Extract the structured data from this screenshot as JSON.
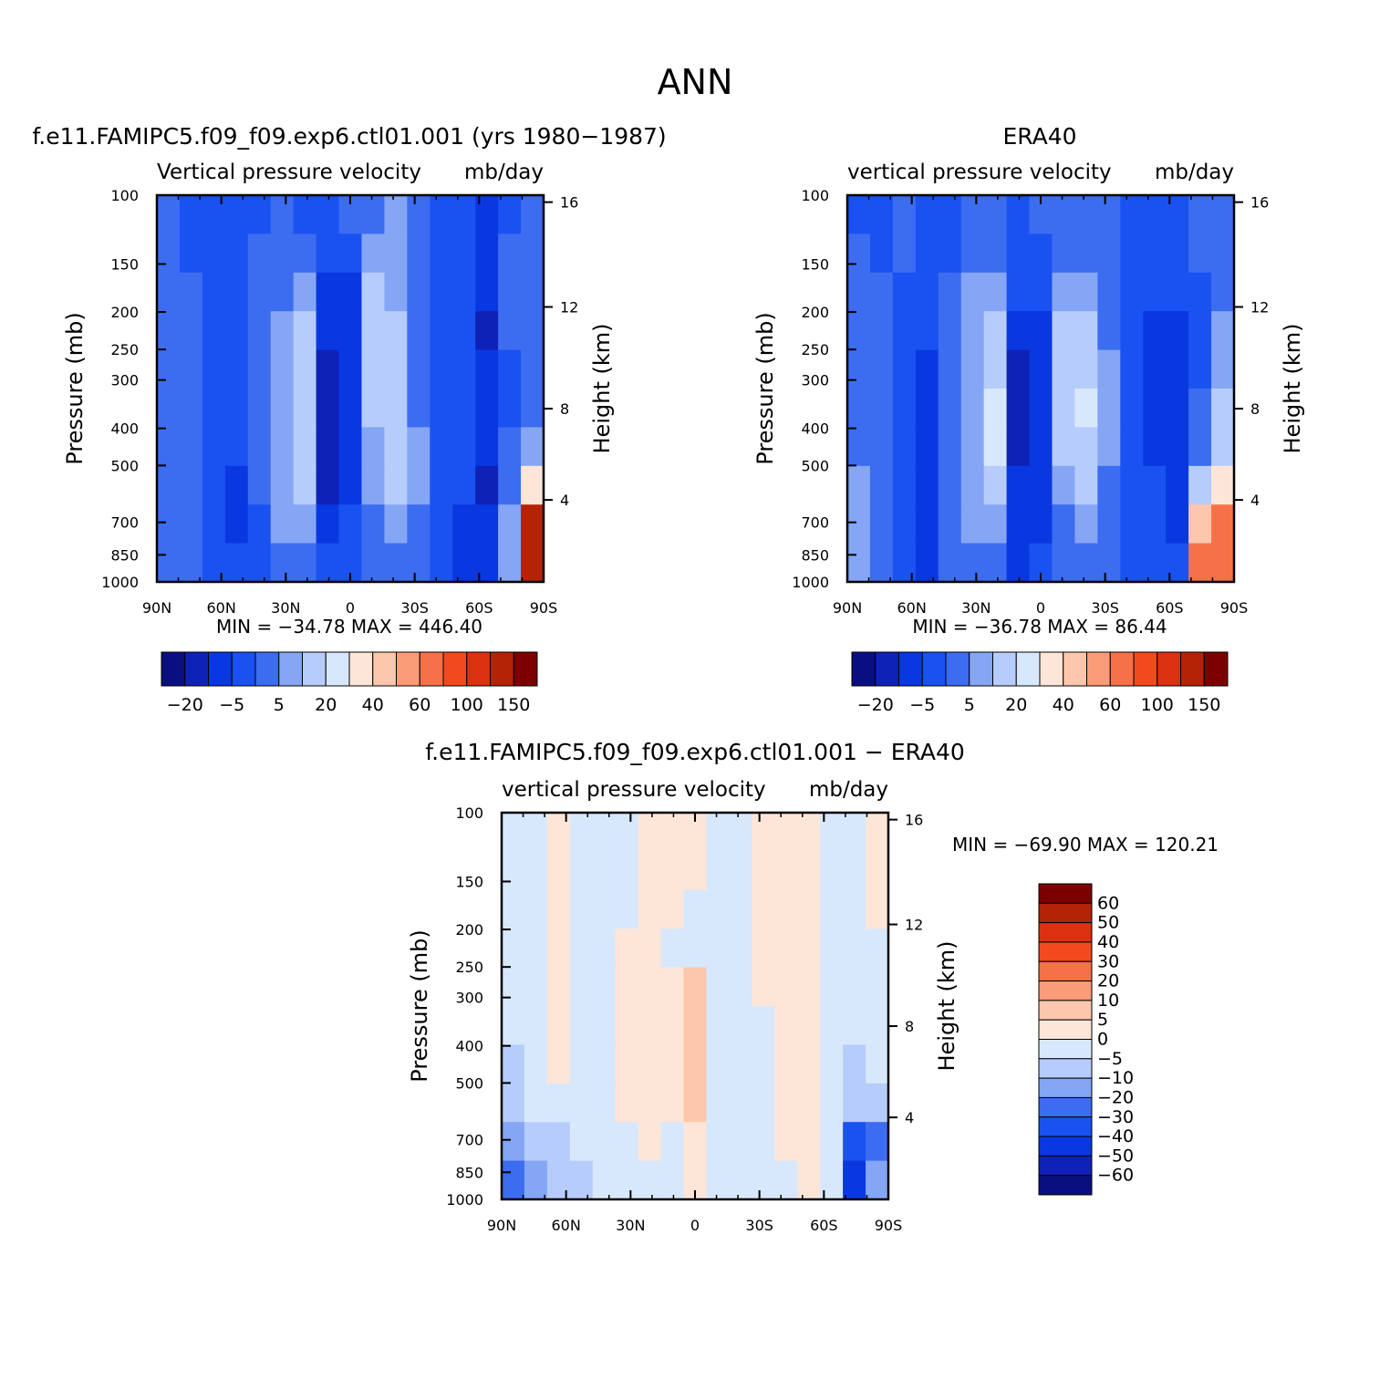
{
  "page_title": "ANN",
  "chart_data": [
    {
      "type": "heatmap",
      "title": "f.e11.FAMIPC5.f09_f09.exp6.ctl01.001 (yrs 1980-1987)",
      "field_label": "Vertical pressure velocity",
      "units": "mb/day",
      "xlabel": "",
      "ylabel": "Pressure (mb)",
      "y2label": "Height (km)",
      "x_ticks": [
        "90N",
        "60N",
        "30N",
        "0",
        "30S",
        "60S",
        "90S"
      ],
      "y_ticks": [
        100,
        150,
        200,
        250,
        300,
        400,
        500,
        700,
        850,
        1000
      ],
      "y2_ticks": [
        16,
        12,
        8,
        4
      ],
      "ylim": [
        1000,
        100
      ],
      "min_label": "MIN = -34.78",
      "max_label": "MAX = 446.40",
      "colorbar_orientation": "horizontal",
      "colorbar_labels": [
        "-20",
        "-5",
        "5",
        "20",
        "40",
        "60",
        "100",
        "150"
      ],
      "colors": [
        "#0a0f80",
        "#0f22b8",
        "#0a38e0",
        "#1a52f2",
        "#3c6cf0",
        "#84a6f5",
        "#b6ccfa",
        "#d8e8fc",
        "#fde6d8",
        "#fcc7ad",
        "#fb9c78",
        "#f77148",
        "#f24a1e",
        "#dc3110",
        "#b52306",
        "#7d0000"
      ],
      "field": [
        [
          0.26,
          0.23,
          0.22,
          0.21,
          0.24,
          0.31,
          0.24,
          0.22,
          0.25,
          0.31,
          0.32,
          0.25,
          0.22,
          0.22,
          0.18,
          0.24,
          0.25
        ],
        [
          0.27,
          0.24,
          0.22,
          0.22,
          0.25,
          0.31,
          0.26,
          0.23,
          0.23,
          0.33,
          0.32,
          0.27,
          0.21,
          0.21,
          0.17,
          0.25,
          0.28
        ],
        [
          0.28,
          0.28,
          0.24,
          0.22,
          0.26,
          0.31,
          0.35,
          0.16,
          0.18,
          0.39,
          0.32,
          0.27,
          0.22,
          0.2,
          0.14,
          0.25,
          0.3
        ],
        [
          0.28,
          0.3,
          0.24,
          0.21,
          0.25,
          0.32,
          0.39,
          0.13,
          0.15,
          0.39,
          0.38,
          0.26,
          0.23,
          0.2,
          0.11,
          0.26,
          0.28
        ],
        [
          0.28,
          0.29,
          0.22,
          0.19,
          0.25,
          0.33,
          0.41,
          0.11,
          0.14,
          0.39,
          0.42,
          0.26,
          0.22,
          0.21,
          0.13,
          0.24,
          0.31
        ],
        [
          0.28,
          0.29,
          0.22,
          0.19,
          0.25,
          0.35,
          0.41,
          0.11,
          0.14,
          0.4,
          0.43,
          0.28,
          0.22,
          0.2,
          0.15,
          0.23,
          0.31
        ],
        [
          0.27,
          0.31,
          0.21,
          0.19,
          0.28,
          0.37,
          0.4,
          0.12,
          0.15,
          0.36,
          0.41,
          0.32,
          0.21,
          0.2,
          0.13,
          0.26,
          0.37
        ],
        [
          0.31,
          0.31,
          0.19,
          0.18,
          0.27,
          0.36,
          0.38,
          0.12,
          0.16,
          0.34,
          0.39,
          0.32,
          0.21,
          0.2,
          0.12,
          0.27,
          0.52
        ],
        [
          0.28,
          0.3,
          0.2,
          0.18,
          0.23,
          0.33,
          0.33,
          0.14,
          0.19,
          0.28,
          0.33,
          0.3,
          0.19,
          0.18,
          0.14,
          0.32,
          0.9
        ],
        [
          0.25,
          0.27,
          0.21,
          0.2,
          0.22,
          0.27,
          0.3,
          0.19,
          0.21,
          0.25,
          0.28,
          0.27,
          0.2,
          0.17,
          0.14,
          0.36,
          0.92
        ]
      ]
    },
    {
      "type": "heatmap",
      "title": "ERA40",
      "field_label": "vertical pressure velocity",
      "units": "mb/day",
      "xlabel": "",
      "ylabel": "Pressure (mb)",
      "y2label": "Height (km)",
      "x_ticks": [
        "90N",
        "60N",
        "30N",
        "0",
        "30S",
        "60S",
        "90S"
      ],
      "y_ticks": [
        100,
        150,
        200,
        250,
        300,
        400,
        500,
        700,
        850,
        1000
      ],
      "y2_ticks": [
        16,
        12,
        8,
        4
      ],
      "ylim": [
        1000,
        100
      ],
      "min_label": "MIN = -36.78",
      "max_label": "MAX = 86.44",
      "colorbar_orientation": "horizontal",
      "colorbar_labels": [
        "-20",
        "-5",
        "5",
        "20",
        "40",
        "60",
        "100",
        "150"
      ],
      "colors": [
        "#0a0f80",
        "#0f22b8",
        "#0a38e0",
        "#1a52f2",
        "#3c6cf0",
        "#84a6f5",
        "#b6ccfa",
        "#d8e8fc",
        "#fde6d8",
        "#fcc7ad",
        "#fb9c78",
        "#f77148",
        "#f24a1e",
        "#dc3110",
        "#b52306",
        "#7d0000"
      ],
      "field": [
        [
          0.24,
          0.24,
          0.25,
          0.22,
          0.24,
          0.31,
          0.29,
          0.24,
          0.25,
          0.3,
          0.29,
          0.27,
          0.22,
          0.2,
          0.21,
          0.26,
          0.28
        ],
        [
          0.25,
          0.24,
          0.25,
          0.23,
          0.24,
          0.3,
          0.28,
          0.22,
          0.24,
          0.3,
          0.3,
          0.28,
          0.22,
          0.2,
          0.22,
          0.25,
          0.28
        ],
        [
          0.27,
          0.25,
          0.24,
          0.22,
          0.25,
          0.32,
          0.37,
          0.19,
          0.2,
          0.35,
          0.35,
          0.3,
          0.23,
          0.19,
          0.21,
          0.24,
          0.3
        ],
        [
          0.28,
          0.26,
          0.23,
          0.2,
          0.26,
          0.33,
          0.42,
          0.13,
          0.16,
          0.39,
          0.41,
          0.31,
          0.22,
          0.18,
          0.17,
          0.22,
          0.33
        ],
        [
          0.29,
          0.26,
          0.21,
          0.18,
          0.26,
          0.34,
          0.43,
          0.12,
          0.14,
          0.39,
          0.43,
          0.32,
          0.21,
          0.18,
          0.16,
          0.24,
          0.34
        ],
        [
          0.28,
          0.25,
          0.2,
          0.18,
          0.27,
          0.36,
          0.44,
          0.11,
          0.13,
          0.39,
          0.44,
          0.32,
          0.21,
          0.17,
          0.15,
          0.27,
          0.39
        ],
        [
          0.3,
          0.26,
          0.2,
          0.18,
          0.28,
          0.37,
          0.44,
          0.12,
          0.14,
          0.38,
          0.43,
          0.32,
          0.21,
          0.18,
          0.14,
          0.31,
          0.43
        ],
        [
          0.32,
          0.27,
          0.19,
          0.17,
          0.3,
          0.36,
          0.41,
          0.13,
          0.16,
          0.35,
          0.4,
          0.31,
          0.2,
          0.19,
          0.15,
          0.38,
          0.54
        ],
        [
          0.35,
          0.29,
          0.19,
          0.16,
          0.31,
          0.34,
          0.36,
          0.15,
          0.18,
          0.31,
          0.35,
          0.29,
          0.2,
          0.19,
          0.17,
          0.62,
          0.72
        ],
        [
          0.37,
          0.3,
          0.2,
          0.16,
          0.29,
          0.31,
          0.31,
          0.18,
          0.2,
          0.27,
          0.3,
          0.27,
          0.21,
          0.19,
          0.2,
          0.7,
          0.74
        ]
      ]
    },
    {
      "type": "heatmap",
      "title": "f.e11.FAMIPC5.f09_f09.exp6.ctl01.001 - ERA40",
      "field_label": "vertical pressure velocity",
      "units": "mb/day",
      "xlabel": "",
      "ylabel": "Pressure (mb)",
      "y2label": "Height (km)",
      "x_ticks": [
        "90N",
        "60N",
        "30N",
        "0",
        "30S",
        "60S",
        "90S"
      ],
      "y_ticks": [
        100,
        150,
        200,
        250,
        300,
        400,
        500,
        700,
        850,
        1000
      ],
      "y2_ticks": [
        16,
        12,
        8,
        4
      ],
      "ylim": [
        1000,
        100
      ],
      "min_label": "MIN = -69.90",
      "max_label": "MAX = 120.21",
      "colorbar_orientation": "vertical",
      "colorbar_labels": [
        "60",
        "50",
        "40",
        "30",
        "20",
        "10",
        "5",
        "0",
        "-5",
        "-10",
        "-20",
        "-30",
        "-40",
        "-50",
        "-60"
      ],
      "colors": [
        "#0a0f80",
        "#0f22b8",
        "#0a38e0",
        "#1a52f2",
        "#3c6cf0",
        "#84a6f5",
        "#b6ccfa",
        "#d8e8fc",
        "#fde6d8",
        "#fcc7ad",
        "#fb9c78",
        "#f77148",
        "#f24a1e",
        "#dc3110",
        "#b52306",
        "#7d0000"
      ],
      "field": [
        [
          0.45,
          0.48,
          0.55,
          0.48,
          0.44,
          0.46,
          0.55,
          0.55,
          0.52,
          0.44,
          0.44,
          0.52,
          0.55,
          0.55,
          0.45,
          0.44,
          0.5
        ],
        [
          0.45,
          0.47,
          0.55,
          0.47,
          0.44,
          0.45,
          0.54,
          0.55,
          0.51,
          0.44,
          0.44,
          0.53,
          0.55,
          0.55,
          0.45,
          0.44,
          0.5
        ],
        [
          0.44,
          0.46,
          0.53,
          0.46,
          0.44,
          0.45,
          0.52,
          0.52,
          0.49,
          0.44,
          0.44,
          0.52,
          0.55,
          0.55,
          0.45,
          0.45,
          0.5
        ],
        [
          0.44,
          0.45,
          0.52,
          0.46,
          0.45,
          0.51,
          0.5,
          0.49,
          0.47,
          0.44,
          0.44,
          0.51,
          0.55,
          0.55,
          0.46,
          0.45,
          0.49
        ],
        [
          0.44,
          0.45,
          0.52,
          0.47,
          0.46,
          0.52,
          0.5,
          0.5,
          0.58,
          0.47,
          0.44,
          0.5,
          0.55,
          0.54,
          0.47,
          0.45,
          0.48
        ],
        [
          0.44,
          0.45,
          0.51,
          0.46,
          0.46,
          0.51,
          0.5,
          0.52,
          0.6,
          0.48,
          0.44,
          0.49,
          0.55,
          0.54,
          0.48,
          0.45,
          0.47
        ],
        [
          0.43,
          0.44,
          0.5,
          0.46,
          0.46,
          0.5,
          0.5,
          0.52,
          0.6,
          0.48,
          0.44,
          0.49,
          0.54,
          0.54,
          0.49,
          0.43,
          0.46
        ],
        [
          0.43,
          0.44,
          0.49,
          0.45,
          0.45,
          0.5,
          0.5,
          0.5,
          0.58,
          0.47,
          0.44,
          0.48,
          0.53,
          0.53,
          0.46,
          0.38,
          0.42
        ],
        [
          0.34,
          0.38,
          0.42,
          0.44,
          0.46,
          0.49,
          0.5,
          0.48,
          0.53,
          0.46,
          0.44,
          0.46,
          0.51,
          0.52,
          0.44,
          0.2,
          0.3
        ],
        [
          0.3,
          0.33,
          0.38,
          0.42,
          0.45,
          0.48,
          0.49,
          0.47,
          0.5,
          0.45,
          0.44,
          0.45,
          0.49,
          0.51,
          0.44,
          0.15,
          0.35
        ]
      ]
    }
  ]
}
